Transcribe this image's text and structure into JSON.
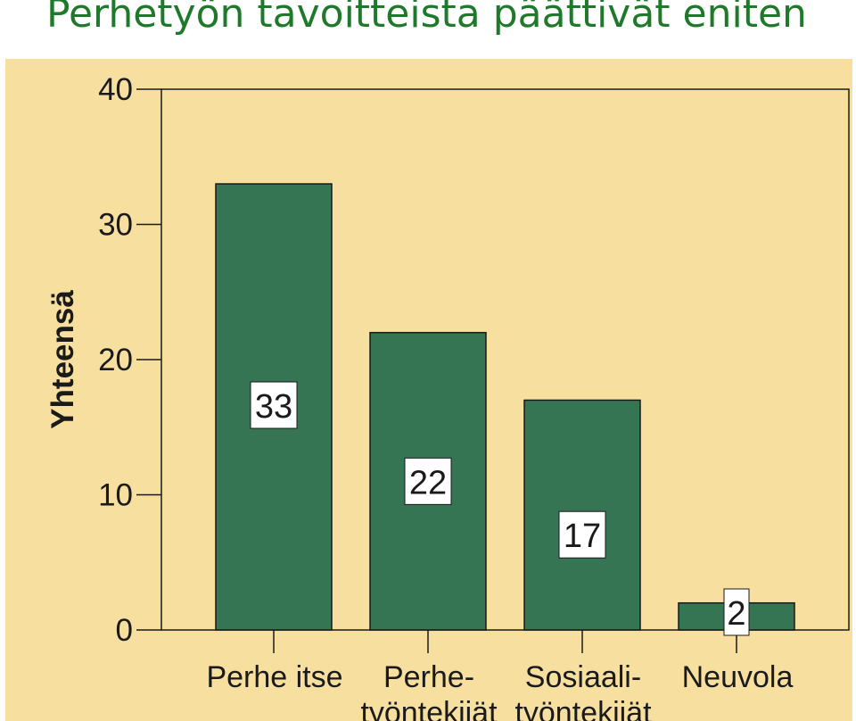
{
  "page": {
    "title": "Perhetyön tavoitteista päättivät eniten"
  },
  "colors": {
    "title": "#1e7a2a",
    "plot_background": "#f7dfa0",
    "bar_fill": "#357553",
    "bar_stroke": "#1a1a1a"
  },
  "chart_data": {
    "type": "bar",
    "title": "Perhetyön tavoitteista päättivät eniten",
    "xlabel": "",
    "ylabel": "Yhteensä",
    "categories": [
      [
        "Perhe itse"
      ],
      [
        "Perhe-",
        "työntekijät"
      ],
      [
        "Sosiaali-",
        "työntekijät"
      ],
      [
        "Neuvola"
      ]
    ],
    "values": [
      33,
      22,
      17,
      2
    ],
    "ylim": [
      0,
      40
    ],
    "yticks": [
      0,
      10,
      20,
      30,
      40
    ],
    "data_labels": true,
    "grid": false
  }
}
